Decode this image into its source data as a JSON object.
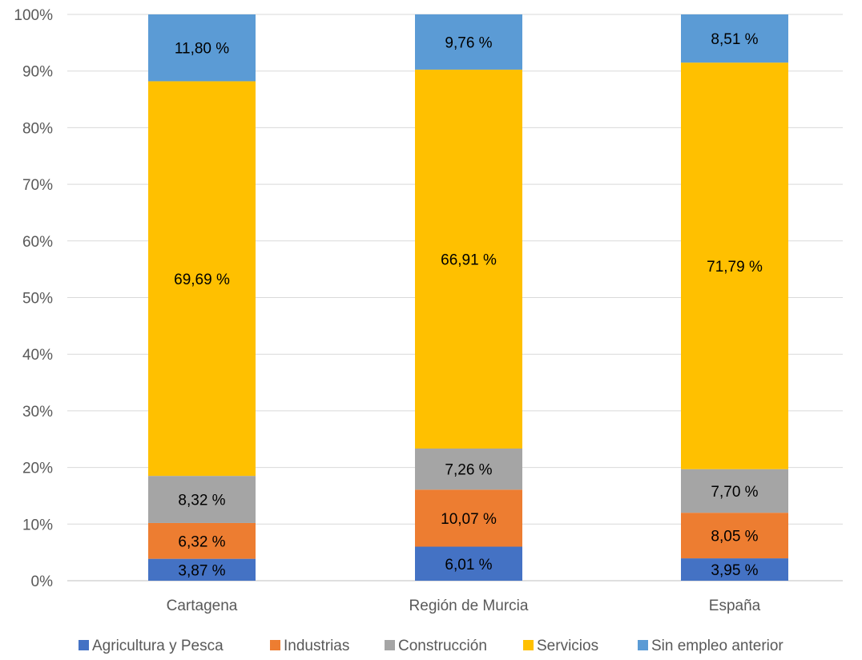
{
  "chart_data": {
    "type": "bar",
    "stacked": true,
    "percent_stacked": true,
    "categories": [
      "Cartagena",
      "Región de Murcia",
      "España"
    ],
    "series": [
      {
        "name": "Agricultura y Pesca",
        "values": [
          3.87,
          6.01,
          3.95
        ],
        "labels": [
          "3,87 %",
          "6,01 %",
          "3,95 %"
        ],
        "color": "#4472C4"
      },
      {
        "name": "Industrias",
        "values": [
          6.32,
          10.07,
          8.05
        ],
        "labels": [
          "6,32 %",
          "10,07 %",
          "8,05 %"
        ],
        "color": "#ED7D31"
      },
      {
        "name": "Construcción",
        "values": [
          8.32,
          7.26,
          7.7
        ],
        "labels": [
          "8,32 %",
          "7,26 %",
          "7,70 %"
        ],
        "color": "#A5A5A5"
      },
      {
        "name": "Servicios",
        "values": [
          69.69,
          66.91,
          71.79
        ],
        "labels": [
          "69,69 %",
          "66,91 %",
          "71,79 %"
        ],
        "color": "#FFC000"
      },
      {
        "name": "Sin empleo anterior",
        "values": [
          11.8,
          9.76,
          8.51
        ],
        "labels": [
          "11,80 %",
          "9,76 %",
          "8,51 %"
        ],
        "color": "#5B9BD5"
      }
    ],
    "y_ticks": [
      "0%",
      "10%",
      "20%",
      "30%",
      "40%",
      "50%",
      "60%",
      "70%",
      "80%",
      "90%",
      "100%"
    ],
    "ylim": [
      0,
      100
    ],
    "grid": true,
    "legend_position": "bottom"
  }
}
